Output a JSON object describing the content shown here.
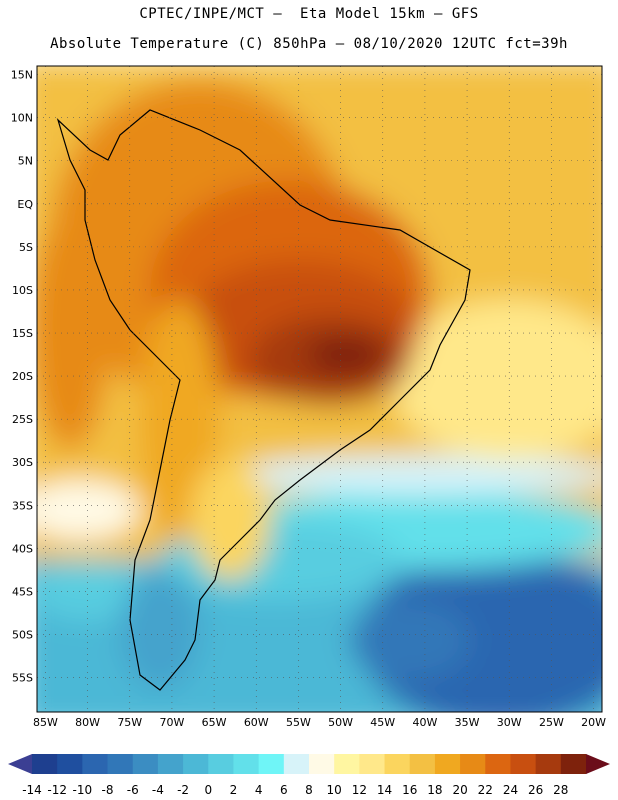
{
  "header": {
    "line1": "CPTEC/INPE/MCT –  Eta Model 15km – GFS",
    "line2": "Absolute Temperature (C) 850hPa – 08/10/2020 12UTC fct=39h"
  },
  "map": {
    "lat_labels": [
      "15N",
      "10N",
      "5N",
      "EQ",
      "5S",
      "10S",
      "15S",
      "20S",
      "25S",
      "30S",
      "35S",
      "40S",
      "45S",
      "50S",
      "55S"
    ],
    "lon_labels": [
      "85W",
      "80W",
      "75W",
      "70W",
      "65W",
      "60W",
      "55W",
      "50W",
      "45W",
      "40W",
      "35W",
      "30W",
      "25W",
      "20W"
    ],
    "lat_range": [
      16,
      -59
    ],
    "lon_range": [
      -86,
      -19
    ],
    "gridline_step_deg": 5
  },
  "colorbar": {
    "labels": [
      "-14",
      "-12",
      "-10",
      "-8",
      "-6",
      "-4",
      "-2",
      "0",
      "2",
      "4",
      "6",
      "8",
      "10",
      "12",
      "14",
      "16",
      "18",
      "20",
      "22",
      "24",
      "26",
      "28"
    ],
    "colors": [
      "#1e3f8f",
      "#1f4f9f",
      "#2b66b0",
      "#3177b8",
      "#3b8dc2",
      "#44a3cc",
      "#4cb8d6",
      "#58cde0",
      "#62e0ea",
      "#6ff5f7",
      "#d7f3f9",
      "#fffae6",
      "#fff6a1",
      "#ffe88a",
      "#fbd55e",
      "#f3c043",
      "#f0a820",
      "#e78a16",
      "#dc6611",
      "#c84f10",
      "#a63a0e",
      "#7e220c"
    ],
    "under_color": "#3b3f93",
    "over_color": "#6b0d1a"
  }
}
